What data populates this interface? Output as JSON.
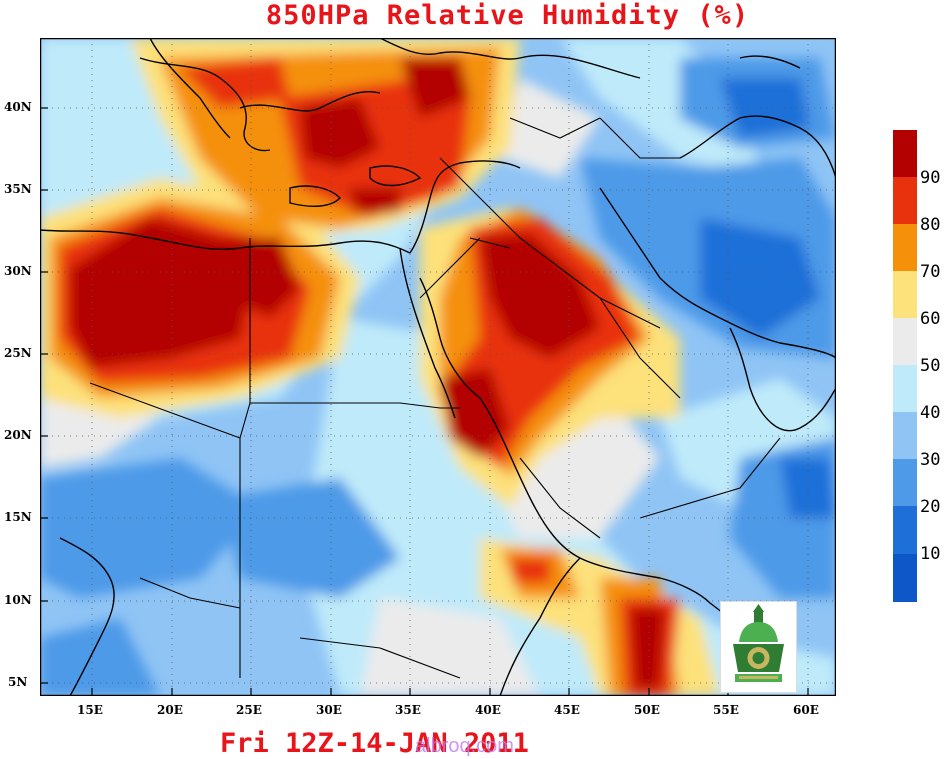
{
  "title": "850HPa Relative Humidity (%)",
  "valid_time": "Fri 12Z-14-JAN 2011",
  "watermark": "albroq.com",
  "map": {
    "lon_range": [
      12,
      62
    ],
    "lat_range": [
      4,
      44
    ],
    "x_ticks": [
      "15E",
      "20E",
      "25E",
      "30E",
      "35E",
      "40E",
      "45E",
      "50E",
      "55E",
      "60E"
    ],
    "y_ticks": [
      "40N",
      "35N",
      "30N",
      "25N",
      "20N",
      "15N",
      "10N",
      "5N"
    ],
    "gridlines": "dotted"
  },
  "legend": {
    "levels": [
      "90",
      "80",
      "70",
      "60",
      "50",
      "40",
      "30",
      "20",
      "10"
    ],
    "colors": [
      "#b30000",
      "#e8320e",
      "#f5900a",
      "#fde17a",
      "#ebebeb",
      "#bfeafa",
      "#8fc4f5",
      "#4e9ae8",
      "#1f6fd8",
      "#0d57c8"
    ]
  },
  "logo": {
    "icon": "university-emblem-icon"
  }
}
